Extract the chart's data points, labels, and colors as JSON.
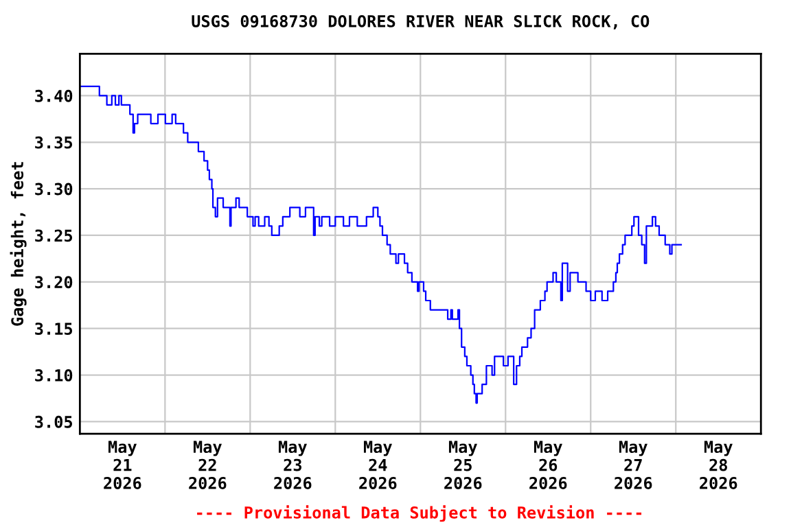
{
  "chart_data": {
    "type": "step",
    "title": "USGS 09168730 DOLORES RIVER NEAR SLICK ROCK, CO",
    "ylabel": "Gage height, feet",
    "annotations": [
      "---- Provisional Data Subject to Revision ----"
    ],
    "x": [
      "2026-05-21T00:00",
      "2026-05-21T05:30",
      "2026-05-21T07:36",
      "2026-05-21T09:00",
      "2026-05-21T10:00",
      "2026-05-21T11:00",
      "2026-05-21T11:42",
      "2026-05-21T14:06",
      "2026-05-21T15:00",
      "2026-05-21T15:24",
      "2026-05-21T16:18",
      "2026-05-21T20:00",
      "2026-05-21T22:00",
      "2026-05-22T00:06",
      "2026-05-22T02:00",
      "2026-05-22T03:00",
      "2026-05-22T05:12",
      "2026-05-22T06:24",
      "2026-05-22T09:24",
      "2026-05-22T11:00",
      "2026-05-22T12:00",
      "2026-05-22T12:30",
      "2026-05-22T13:12",
      "2026-05-22T13:30",
      "2026-05-22T14:12",
      "2026-05-22T14:48",
      "2026-05-22T16:24",
      "2026-05-22T18:18",
      "2026-05-22T18:36",
      "2026-05-22T20:00",
      "2026-05-22T20:54",
      "2026-05-22T23:12",
      "2026-05-23T00:48",
      "2026-05-23T01:24",
      "2026-05-23T02:24",
      "2026-05-23T04:06",
      "2026-05-23T05:18",
      "2026-05-23T06:06",
      "2026-05-23T08:12",
      "2026-05-23T09:12",
      "2026-05-23T11:12",
      "2026-05-23T14:00",
      "2026-05-23T15:36",
      "2026-05-23T17:54",
      "2026-05-23T18:18",
      "2026-05-23T19:30",
      "2026-05-23T20:12",
      "2026-05-23T22:24",
      "2026-05-24T00:00",
      "2026-05-24T02:18",
      "2026-05-24T04:00",
      "2026-05-24T06:12",
      "2026-05-24T08:48",
      "2026-05-24T10:42",
      "2026-05-24T12:00",
      "2026-05-24T12:36",
      "2026-05-24T13:18",
      "2026-05-24T14:36",
      "2026-05-24T15:30",
      "2026-05-24T17:06",
      "2026-05-24T17:48",
      "2026-05-24T19:30",
      "2026-05-24T20:24",
      "2026-05-24T21:36",
      "2026-05-24T23:12",
      "2026-05-24T23:36",
      "2026-05-25T00:54",
      "2026-05-25T01:30",
      "2026-05-25T02:48",
      "2026-05-25T07:42",
      "2026-05-25T08:36",
      "2026-05-25T09:00",
      "2026-05-25T10:36",
      "2026-05-25T11:00",
      "2026-05-25T11:36",
      "2026-05-25T12:30",
      "2026-05-25T13:06",
      "2026-05-25T14:12",
      "2026-05-25T14:48",
      "2026-05-25T15:12",
      "2026-05-25T15:42",
      "2026-05-25T16:00",
      "2026-05-25T17:24",
      "2026-05-25T18:36",
      "2026-05-25T20:12",
      "2026-05-25T20:54",
      "2026-05-25T23:24",
      "2026-05-26T00:42",
      "2026-05-26T02:18",
      "2026-05-26T03:06",
      "2026-05-26T04:00",
      "2026-05-26T04:36",
      "2026-05-26T06:12",
      "2026-05-26T07:12",
      "2026-05-26T08:12",
      "2026-05-26T09:48",
      "2026-05-26T11:06",
      "2026-05-26T11:42",
      "2026-05-26T13:24",
      "2026-05-26T14:18",
      "2026-05-26T15:36",
      "2026-05-26T16:00",
      "2026-05-26T17:30",
      "2026-05-26T18:12",
      "2026-05-26T20:24",
      "2026-05-26T22:42",
      "2026-05-27T00:00",
      "2026-05-27T01:18",
      "2026-05-27T03:12",
      "2026-05-27T04:48",
      "2026-05-27T06:24",
      "2026-05-27T07:06",
      "2026-05-27T07:30",
      "2026-05-27T08:06",
      "2026-05-27T09:00",
      "2026-05-27T09:42",
      "2026-05-27T11:36",
      "2026-05-27T12:12",
      "2026-05-27T13:30",
      "2026-05-27T14:24",
      "2026-05-27T15:12",
      "2026-05-27T15:42",
      "2026-05-27T17:24",
      "2026-05-27T18:18",
      "2026-05-27T19:18",
      "2026-05-27T21:00",
      "2026-05-27T22:18",
      "2026-05-27T22:54",
      "2026-05-28T01:30"
    ],
    "series": [
      {
        "color": "#0000ff",
        "values": [
          3.41,
          3.4,
          3.39,
          3.4,
          3.39,
          3.4,
          3.39,
          3.38,
          3.36,
          3.37,
          3.38,
          3.37,
          3.38,
          3.37,
          3.38,
          3.37,
          3.36,
          3.35,
          3.34,
          3.33,
          3.32,
          3.31,
          3.3,
          3.28,
          3.27,
          3.29,
          3.28,
          3.26,
          3.28,
          3.29,
          3.28,
          3.27,
          3.26,
          3.27,
          3.26,
          3.27,
          3.26,
          3.25,
          3.26,
          3.27,
          3.28,
          3.27,
          3.28,
          3.25,
          3.27,
          3.26,
          3.27,
          3.26,
          3.27,
          3.26,
          3.27,
          3.26,
          3.27,
          3.28,
          3.27,
          3.26,
          3.25,
          3.24,
          3.23,
          3.22,
          3.23,
          3.22,
          3.21,
          3.2,
          3.19,
          3.2,
          3.19,
          3.18,
          3.17,
          3.16,
          3.17,
          3.16,
          3.17,
          3.15,
          3.13,
          3.12,
          3.11,
          3.1,
          3.09,
          3.08,
          3.07,
          3.08,
          3.09,
          3.11,
          3.1,
          3.12,
          3.11,
          3.12,
          3.09,
          3.11,
          3.12,
          3.13,
          3.14,
          3.15,
          3.17,
          3.18,
          3.19,
          3.2,
          3.21,
          3.2,
          3.18,
          3.22,
          3.19,
          3.21,
          3.2,
          3.19,
          3.18,
          3.19,
          3.18,
          3.19,
          3.2,
          3.21,
          3.22,
          3.23,
          3.24,
          3.25,
          3.26,
          3.27,
          3.25,
          3.24,
          3.22,
          3.26,
          3.27,
          3.26,
          3.25,
          3.24,
          3.23,
          3.24,
          3.24
        ]
      }
    ],
    "xlim": [
      "2026-05-21T00:00",
      "2026-05-29T00:00"
    ],
    "xticks": [
      {
        "value": "2026-05-21T12:00",
        "label": "May\n21\n2026"
      },
      {
        "value": "2026-05-22T00:00",
        "label": null
      },
      {
        "value": "2026-05-22T12:00",
        "label": "May\n22\n2026"
      },
      {
        "value": "2026-05-23T00:00",
        "label": null
      },
      {
        "value": "2026-05-23T12:00",
        "label": "May\n23\n2026"
      },
      {
        "value": "2026-05-24T00:00",
        "label": null
      },
      {
        "value": "2026-05-24T12:00",
        "label": "May\n24\n2026"
      },
      {
        "value": "2026-05-25T00:00",
        "label": null
      },
      {
        "value": "2026-05-25T12:00",
        "label": "May\n25\n2026"
      },
      {
        "value": "2026-05-26T00:00",
        "label": null
      },
      {
        "value": "2026-05-26T12:00",
        "label": "May\n26\n2026"
      },
      {
        "value": "2026-05-27T00:00",
        "label": null
      },
      {
        "value": "2026-05-27T12:00",
        "label": "May\n27\n2026"
      },
      {
        "value": "2026-05-28T00:00",
        "label": null
      },
      {
        "value": "2026-05-28T12:00",
        "label": "May\n28\n2026"
      }
    ],
    "ylim": [
      3.037,
      3.445
    ],
    "yticks": [
      {
        "value": 3.05,
        "label": "3.05"
      },
      {
        "value": 3.1,
        "label": "3.10"
      },
      {
        "value": 3.15,
        "label": "3.15"
      },
      {
        "value": 3.2,
        "label": "3.20"
      },
      {
        "value": 3.25,
        "label": "3.25"
      },
      {
        "value": 3.3,
        "label": "3.30"
      },
      {
        "value": 3.35,
        "label": "3.35"
      },
      {
        "value": 3.4,
        "label": "3.40"
      }
    ],
    "grid": true,
    "line_style": "solid"
  }
}
